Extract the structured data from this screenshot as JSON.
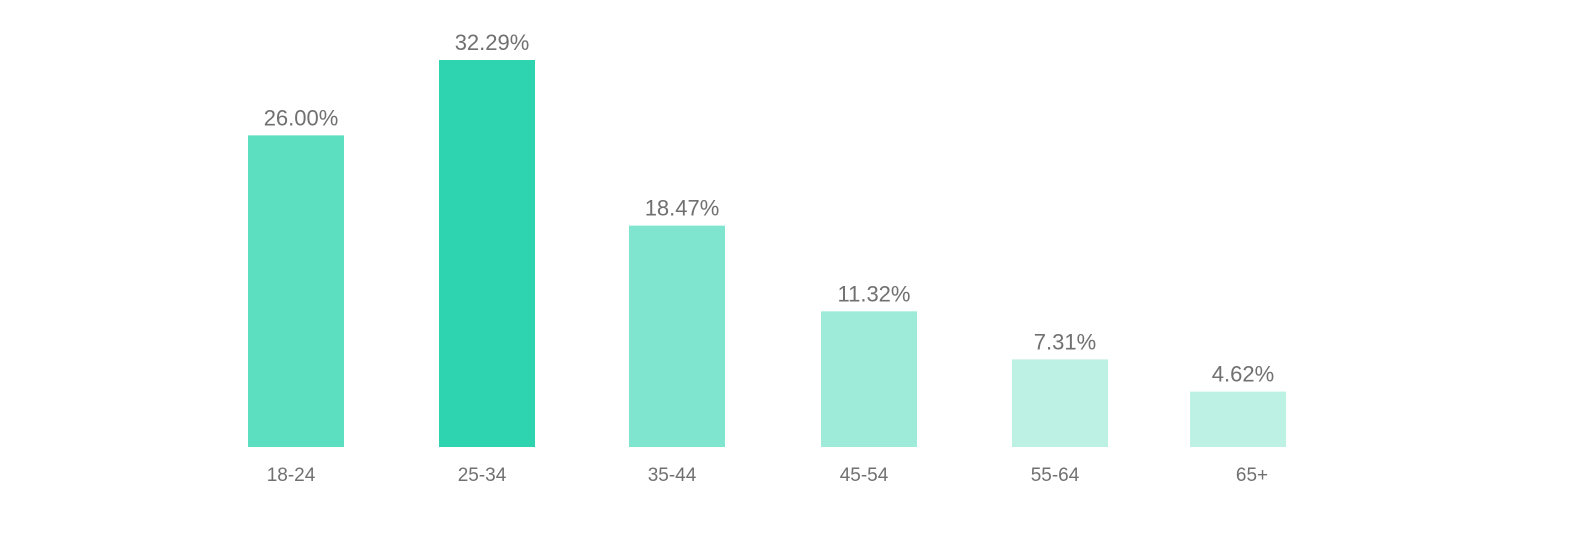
{
  "chart_data": {
    "type": "bar",
    "categories": [
      "18-24",
      "25-34",
      "35-44",
      "45-54",
      "55-64",
      "65+"
    ],
    "values": [
      26.0,
      32.29,
      18.47,
      11.32,
      7.31,
      4.62
    ],
    "data_labels": [
      "26.00%",
      "32.29%",
      "18.47%",
      "11.32%",
      "7.31%",
      "4.62%"
    ],
    "bar_colors": [
      "#5cdec0",
      "#2ed4b0",
      "#80e5cf",
      "#9eebd9",
      "#bdf1e4",
      "#bdf1e4"
    ],
    "label_color": "#707070",
    "title": "",
    "xlabel": "",
    "ylabel": "",
    "ylim": [
      0,
      32.29
    ],
    "grid": false,
    "legend": "none"
  }
}
